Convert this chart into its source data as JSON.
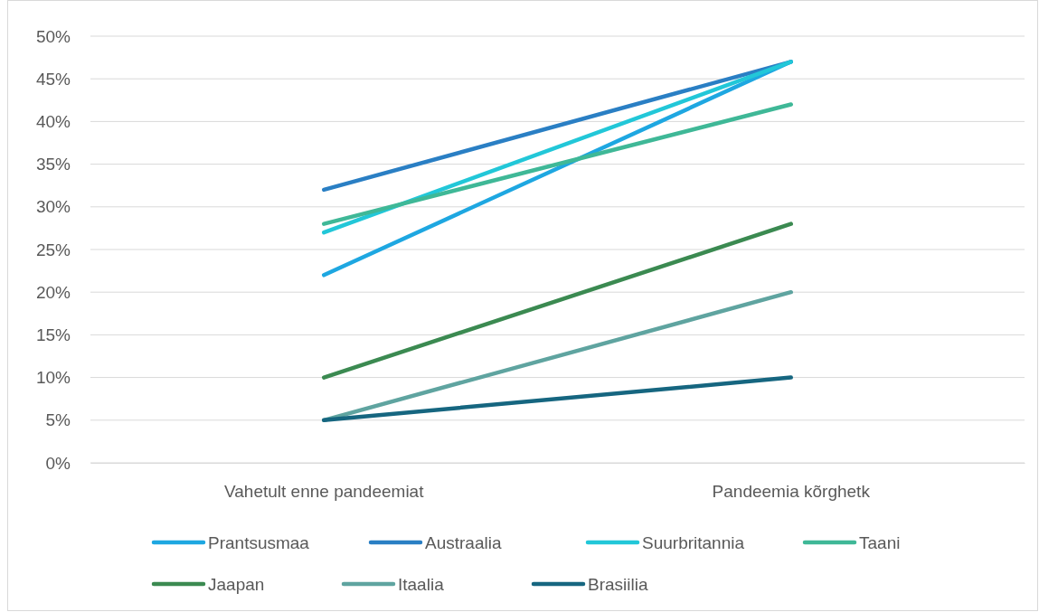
{
  "chart_data": {
    "type": "line",
    "categories": [
      "Vahetult enne pandeemiat",
      "Pandeemia kõrghetk"
    ],
    "series": [
      {
        "name": "Prantsusmaa",
        "color": "#1ea7e1",
        "values": [
          22,
          47
        ]
      },
      {
        "name": "Austraalia",
        "color": "#2a7fc4",
        "values": [
          32,
          47
        ]
      },
      {
        "name": "Suurbritannia",
        "color": "#22c7d8",
        "values": [
          27,
          47
        ]
      },
      {
        "name": "Taani",
        "color": "#3fb897",
        "values": [
          28,
          42
        ]
      },
      {
        "name": "Jaapan",
        "color": "#3b8a51",
        "values": [
          10,
          28
        ]
      },
      {
        "name": "Itaalia",
        "color": "#5fa4a0",
        "values": [
          5,
          20
        ]
      },
      {
        "name": "Brasiilia",
        "color": "#166680",
        "values": [
          5,
          10
        ]
      }
    ],
    "ylim": [
      0,
      50
    ],
    "yticks": [
      {
        "value": 0,
        "label": "0%"
      },
      {
        "value": 5,
        "label": "5%"
      },
      {
        "value": 10,
        "label": "10%"
      },
      {
        "value": 15,
        "label": "15%"
      },
      {
        "value": 20,
        "label": "20%"
      },
      {
        "value": 25,
        "label": "25%"
      },
      {
        "value": 30,
        "label": "30%"
      },
      {
        "value": 35,
        "label": "35%"
      },
      {
        "value": 40,
        "label": "40%"
      },
      {
        "value": 45,
        "label": "45%"
      },
      {
        "value": 50,
        "label": "50%"
      }
    ],
    "grid": "y",
    "legend": "bottom",
    "marker": "none",
    "line_style": "solid"
  }
}
